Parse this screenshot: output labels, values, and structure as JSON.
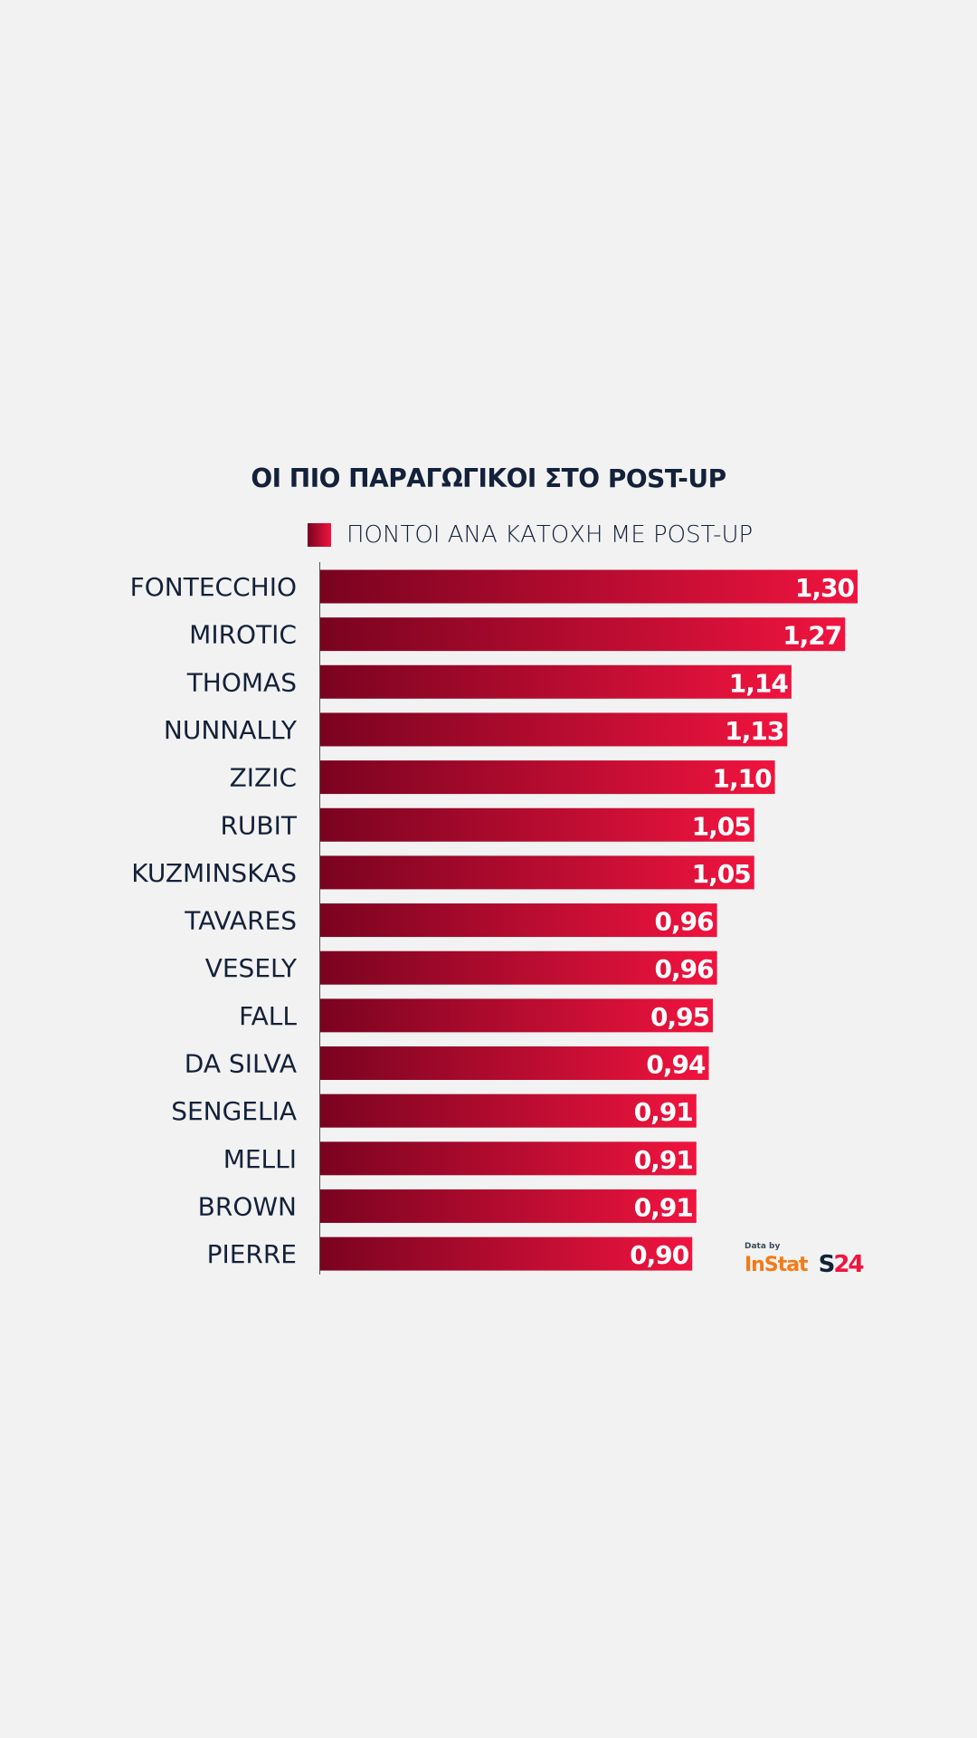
{
  "chart_data": {
    "type": "bar",
    "orientation": "horizontal",
    "title": "ΟΙ ΠΙΟ ΠΑΡΑΓΩΓΙΚΟΙ ΣΤΟ POST-UP",
    "legend": "ΠΟΝΤΟΙ ΑΝΑ ΚΑΤΟΧΗ ΜΕ POST-UP",
    "categories": [
      "FONTECCHIO",
      "MIROTIC",
      "THOMAS",
      "NUNNALLY",
      "ZIZIC",
      "RUBIT",
      "KUZMINSKAS",
      "TAVARES",
      "VESELY",
      "FALL",
      "DA SILVA",
      "SENGELIA",
      "MELLI",
      "BROWN",
      "PIERRE"
    ],
    "values": [
      1.3,
      1.27,
      1.14,
      1.13,
      1.1,
      1.05,
      1.05,
      0.96,
      0.96,
      0.95,
      0.94,
      0.91,
      0.91,
      0.91,
      0.9
    ],
    "value_labels": [
      "1,30",
      "1,27",
      "1,14",
      "1,13",
      "1,10",
      "1,05",
      "1,05",
      "0,96",
      "0,96",
      "0,95",
      "0,94",
      "0,91",
      "0,91",
      "0,91",
      "0,90"
    ],
    "xlim": [
      0,
      1.3
    ],
    "grid": false,
    "colors": {
      "bar_start": "#7a0320",
      "bar_end": "#f0143f",
      "text": "#14213a"
    }
  },
  "source": {
    "data_by": "Data by",
    "provider": "InStat",
    "brand": "S24"
  }
}
